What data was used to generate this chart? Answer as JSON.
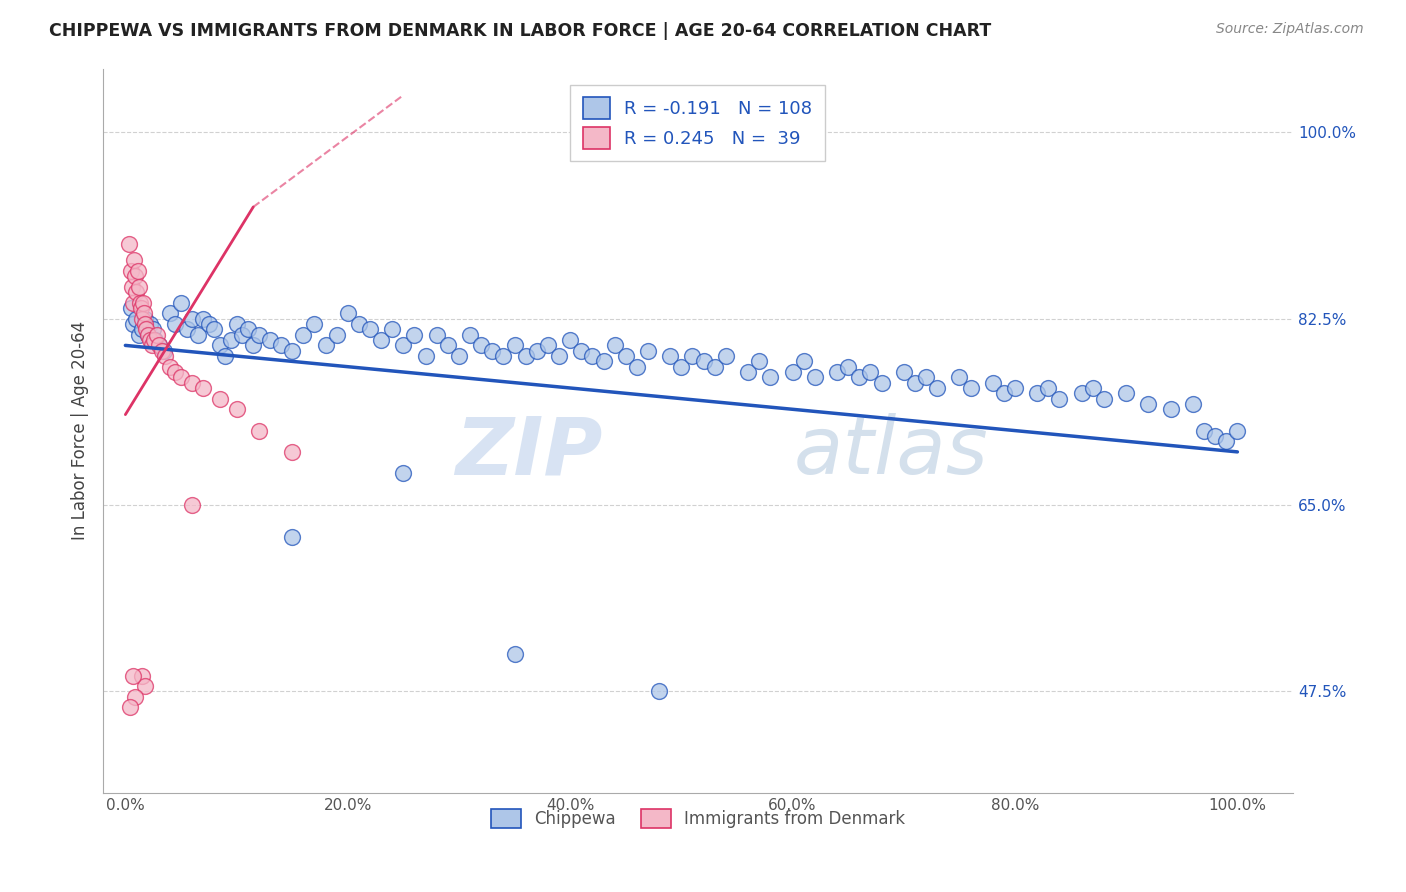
{
  "title": "CHIPPEWA VS IMMIGRANTS FROM DENMARK IN LABOR FORCE | AGE 20-64 CORRELATION CHART",
  "source": "Source: ZipAtlas.com",
  "ylabel": "In Labor Force | Age 20-64",
  "xticklabels": [
    "0.0%",
    "20.0%",
    "40.0%",
    "60.0%",
    "80.0%",
    "100.0%"
  ],
  "xticks": [
    0.0,
    0.2,
    0.4,
    0.6,
    0.8,
    1.0
  ],
  "yticklabels": [
    "47.5%",
    "65.0%",
    "82.5%",
    "100.0%"
  ],
  "yticks": [
    0.475,
    0.65,
    0.825,
    1.0
  ],
  "ylim": [
    0.38,
    1.06
  ],
  "xlim": [
    -0.02,
    1.05
  ],
  "legend_labels": [
    "Chippewa",
    "Immigrants from Denmark"
  ],
  "R_chippewa": -0.191,
  "N_chippewa": 108,
  "R_denmark": 0.245,
  "N_denmark": 39,
  "chippewa_color": "#aec6e8",
  "denmark_color": "#f4b8c8",
  "chippewa_line_color": "#2255bb",
  "denmark_line_color": "#dd3366",
  "watermark_zip": "ZIP",
  "watermark_atlas": "atlas",
  "chippewa_x": [
    0.005,
    0.007,
    0.01,
    0.012,
    0.015,
    0.018,
    0.02,
    0.022,
    0.025,
    0.027,
    0.03,
    0.035,
    0.04,
    0.045,
    0.05,
    0.055,
    0.06,
    0.065,
    0.07,
    0.075,
    0.08,
    0.085,
    0.09,
    0.095,
    0.1,
    0.105,
    0.11,
    0.115,
    0.12,
    0.13,
    0.14,
    0.15,
    0.16,
    0.17,
    0.18,
    0.19,
    0.2,
    0.21,
    0.22,
    0.23,
    0.24,
    0.25,
    0.26,
    0.27,
    0.28,
    0.29,
    0.3,
    0.31,
    0.32,
    0.33,
    0.34,
    0.35,
    0.36,
    0.37,
    0.38,
    0.39,
    0.4,
    0.41,
    0.42,
    0.43,
    0.44,
    0.45,
    0.46,
    0.47,
    0.49,
    0.5,
    0.51,
    0.52,
    0.53,
    0.54,
    0.56,
    0.57,
    0.58,
    0.6,
    0.61,
    0.62,
    0.64,
    0.65,
    0.66,
    0.67,
    0.68,
    0.7,
    0.71,
    0.72,
    0.73,
    0.75,
    0.76,
    0.78,
    0.79,
    0.8,
    0.82,
    0.83,
    0.84,
    0.86,
    0.87,
    0.88,
    0.9,
    0.92,
    0.94,
    0.96,
    0.97,
    0.98,
    0.99,
    1.0,
    0.15,
    0.25,
    0.35,
    0.48
  ],
  "chippewa_y": [
    0.835,
    0.82,
    0.825,
    0.81,
    0.815,
    0.825,
    0.81,
    0.82,
    0.815,
    0.805,
    0.8,
    0.795,
    0.83,
    0.82,
    0.84,
    0.815,
    0.825,
    0.81,
    0.825,
    0.82,
    0.815,
    0.8,
    0.79,
    0.805,
    0.82,
    0.81,
    0.815,
    0.8,
    0.81,
    0.805,
    0.8,
    0.795,
    0.81,
    0.82,
    0.8,
    0.81,
    0.83,
    0.82,
    0.815,
    0.805,
    0.815,
    0.8,
    0.81,
    0.79,
    0.81,
    0.8,
    0.79,
    0.81,
    0.8,
    0.795,
    0.79,
    0.8,
    0.79,
    0.795,
    0.8,
    0.79,
    0.805,
    0.795,
    0.79,
    0.785,
    0.8,
    0.79,
    0.78,
    0.795,
    0.79,
    0.78,
    0.79,
    0.785,
    0.78,
    0.79,
    0.775,
    0.785,
    0.77,
    0.775,
    0.785,
    0.77,
    0.775,
    0.78,
    0.77,
    0.775,
    0.765,
    0.775,
    0.765,
    0.77,
    0.76,
    0.77,
    0.76,
    0.765,
    0.755,
    0.76,
    0.755,
    0.76,
    0.75,
    0.755,
    0.76,
    0.75,
    0.755,
    0.745,
    0.74,
    0.745,
    0.72,
    0.715,
    0.71,
    0.72,
    0.62,
    0.68,
    0.51,
    0.475
  ],
  "denmark_x": [
    0.003,
    0.005,
    0.006,
    0.007,
    0.008,
    0.009,
    0.01,
    0.011,
    0.012,
    0.013,
    0.014,
    0.015,
    0.016,
    0.017,
    0.018,
    0.019,
    0.02,
    0.022,
    0.024,
    0.026,
    0.028,
    0.03,
    0.033,
    0.036,
    0.04,
    0.045,
    0.05,
    0.06,
    0.07,
    0.085,
    0.1,
    0.12,
    0.15,
    0.06,
    0.015,
    0.018,
    0.007,
    0.009,
    0.004
  ],
  "denmark_y": [
    0.895,
    0.87,
    0.855,
    0.84,
    0.88,
    0.865,
    0.85,
    0.87,
    0.855,
    0.84,
    0.835,
    0.825,
    0.84,
    0.83,
    0.82,
    0.815,
    0.81,
    0.805,
    0.8,
    0.805,
    0.81,
    0.8,
    0.795,
    0.79,
    0.78,
    0.775,
    0.77,
    0.765,
    0.76,
    0.75,
    0.74,
    0.72,
    0.7,
    0.65,
    0.49,
    0.48,
    0.49,
    0.47,
    0.46
  ]
}
